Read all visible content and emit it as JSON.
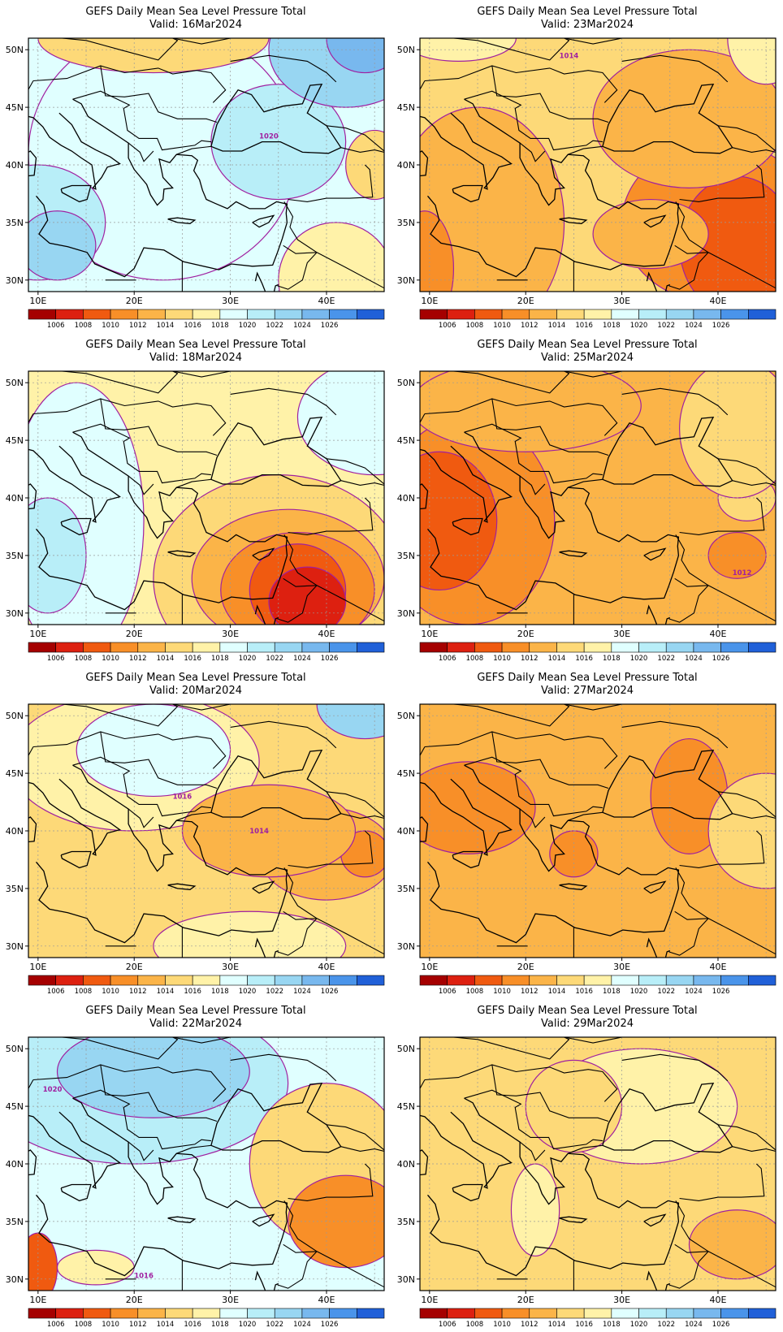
{
  "panels": [
    {
      "title": "GEFS Daily Mean Sea Level Pressure Total",
      "valid": "Valid: 16Mar2024",
      "base_level": 1018,
      "blobs": [
        {
          "lon": 23,
          "lat": 41,
          "rx": 14,
          "ry": 11,
          "level": 1019
        },
        {
          "lon": 35,
          "lat": 42,
          "rx": 7,
          "ry": 5,
          "level": 1020
        },
        {
          "lon": 42,
          "lat": 50,
          "rx": 8,
          "ry": 5,
          "level": 1022
        },
        {
          "lon": 44,
          "lat": 51,
          "rx": 4,
          "ry": 3,
          "level": 1025
        },
        {
          "lon": 10,
          "lat": 35,
          "rx": 7,
          "ry": 5,
          "level": 1021
        },
        {
          "lon": 12,
          "lat": 33,
          "rx": 4,
          "ry": 3,
          "level": 1022
        },
        {
          "lon": 41,
          "lat": 30,
          "rx": 6,
          "ry": 5,
          "level": 1017
        },
        {
          "lon": 45,
          "lat": 40,
          "rx": 3,
          "ry": 3,
          "level": 1014
        },
        {
          "lon": 22,
          "lat": 51,
          "rx": 12,
          "ry": 3,
          "level": 1015
        }
      ],
      "contour_labels": [
        {
          "lon": 34,
          "lat": 42.5,
          "text": "1020"
        }
      ]
    },
    {
      "title": "GEFS Daily Mean Sea Level Pressure Total",
      "valid": "Valid: 23Mar2024",
      "base_level": 1015,
      "blobs": [
        {
          "lon": 15,
          "lat": 35,
          "rx": 9,
          "ry": 10,
          "level": 1013
        },
        {
          "lon": 9.5,
          "lat": 31,
          "rx": 3,
          "ry": 5,
          "level": 1011
        },
        {
          "lon": 40,
          "lat": 35,
          "rx": 10,
          "ry": 7,
          "level": 1011
        },
        {
          "lon": 42,
          "lat": 33,
          "rx": 6,
          "ry": 6,
          "level": 1009
        },
        {
          "lon": 37,
          "lat": 44,
          "rx": 10,
          "ry": 6,
          "level": 1013
        },
        {
          "lon": 33,
          "lat": 34,
          "rx": 6,
          "ry": 3,
          "level": 1013
        },
        {
          "lon": 13,
          "lat": 51,
          "rx": 6,
          "ry": 2,
          "level": 1016
        },
        {
          "lon": 45,
          "lat": 51,
          "rx": 4,
          "ry": 4,
          "level": 1017
        }
      ],
      "contour_labels": [
        {
          "lon": 24.5,
          "lat": 49.5,
          "text": "1014"
        }
      ]
    },
    {
      "title": "GEFS Daily Mean Sea Level Pressure Total",
      "valid": "Valid: 18Mar2024",
      "base_level": 1017,
      "blobs": [
        {
          "lon": 14,
          "lat": 38,
          "rx": 7,
          "ry": 12,
          "level": 1019
        },
        {
          "lon": 11,
          "lat": 35,
          "rx": 4,
          "ry": 5,
          "level": 1021
        },
        {
          "lon": 45,
          "lat": 47,
          "rx": 8,
          "ry": 5,
          "level": 1019
        },
        {
          "lon": 35,
          "lat": 33,
          "rx": 13,
          "ry": 9,
          "level": 1015
        },
        {
          "lon": 36,
          "lat": 33,
          "rx": 10,
          "ry": 6,
          "level": 1012
        },
        {
          "lon": 37,
          "lat": 32,
          "rx": 8,
          "ry": 5,
          "level": 1010
        },
        {
          "lon": 37,
          "lat": 32,
          "rx": 5,
          "ry": 4,
          "level": 1008
        },
        {
          "lon": 38,
          "lat": 31,
          "rx": 4,
          "ry": 3,
          "level": 1006
        }
      ],
      "contour_labels": []
    },
    {
      "title": "GEFS Daily Mean Sea Level Pressure Total",
      "valid": "Valid: 25Mar2024",
      "base_level": 1013,
      "blobs": [
        {
          "lon": 14,
          "lat": 38,
          "rx": 9,
          "ry": 9,
          "level": 1010
        },
        {
          "lon": 11,
          "lat": 38,
          "rx": 6,
          "ry": 6,
          "level": 1008
        },
        {
          "lon": 20,
          "lat": 48,
          "rx": 12,
          "ry": 4,
          "level": 1012
        },
        {
          "lon": 43,
          "lat": 40,
          "rx": 3,
          "ry": 2,
          "level": 1015
        },
        {
          "lon": 42,
          "lat": 35,
          "rx": 3,
          "ry": 2,
          "level": 1011
        },
        {
          "lon": 42,
          "lat": 46,
          "rx": 6,
          "ry": 6,
          "level": 1014
        }
      ],
      "contour_labels": [
        {
          "lon": 42.5,
          "lat": 33.5,
          "text": "1012"
        }
      ]
    },
    {
      "title": "GEFS Daily Mean Sea Level Pressure Total",
      "valid": "Valid: 20Mar2024",
      "base_level": 1015,
      "blobs": [
        {
          "lon": 20,
          "lat": 46,
          "rx": 13,
          "ry": 6,
          "level": 1017
        },
        {
          "lon": 22,
          "lat": 47,
          "rx": 8,
          "ry": 4,
          "level": 1019
        },
        {
          "lon": 44,
          "lat": 51,
          "rx": 5,
          "ry": 3,
          "level": 1023
        },
        {
          "lon": 40,
          "lat": 38,
          "rx": 7,
          "ry": 4,
          "level": 1012
        },
        {
          "lon": 44,
          "lat": 38,
          "rx": 2.5,
          "ry": 2,
          "level": 1010
        },
        {
          "lon": 32,
          "lat": 30,
          "rx": 10,
          "ry": 3,
          "level": 1017
        },
        {
          "lon": 34,
          "lat": 40,
          "rx": 9,
          "ry": 4,
          "level": 1013
        }
      ],
      "contour_labels": [
        {
          "lon": 25,
          "lat": 43,
          "text": "1016"
        },
        {
          "lon": 33,
          "lat": 40,
          "text": "1014"
        }
      ]
    },
    {
      "title": "GEFS Daily Mean Sea Level Pressure Total",
      "valid": "Valid: 27Mar2024",
      "base_level": 1013,
      "blobs": [
        {
          "lon": 14,
          "lat": 42,
          "rx": 7,
          "ry": 4,
          "level": 1011
        },
        {
          "lon": 25,
          "lat": 38,
          "rx": 2.5,
          "ry": 2,
          "level": 1011
        },
        {
          "lon": 37,
          "lat": 43,
          "rx": 4,
          "ry": 5,
          "level": 1011
        },
        {
          "lon": 45,
          "lat": 40,
          "rx": 6,
          "ry": 5,
          "level": 1015
        }
      ],
      "contour_labels": []
    },
    {
      "title": "GEFS Daily Mean Sea Level Pressure Total",
      "valid": "Valid: 22Mar2024",
      "base_level": 1018,
      "blobs": [
        {
          "lon": 20,
          "lat": 47,
          "rx": 16,
          "ry": 7,
          "level": 1021
        },
        {
          "lon": 22,
          "lat": 48,
          "rx": 10,
          "ry": 4,
          "level": 1023
        },
        {
          "lon": 40,
          "lat": 40,
          "rx": 8,
          "ry": 7,
          "level": 1014
        },
        {
          "lon": 42,
          "lat": 35,
          "rx": 6,
          "ry": 4,
          "level": 1011
        },
        {
          "lon": 10,
          "lat": 31,
          "rx": 2,
          "ry": 3,
          "level": 1009
        },
        {
          "lon": 16,
          "lat": 31,
          "rx": 4,
          "ry": 1.5,
          "level": 1017
        }
      ],
      "contour_labels": [
        {
          "lon": 11.5,
          "lat": 46.5,
          "text": "1020"
        },
        {
          "lon": 21,
          "lat": 30.3,
          "text": "1016"
        }
      ]
    },
    {
      "title": "GEFS Daily Mean Sea Level Pressure Total",
      "valid": "Valid: 29Mar2024",
      "base_level": 1014,
      "blobs": [
        {
          "lon": 32,
          "lat": 45,
          "rx": 10,
          "ry": 5,
          "level": 1017
        },
        {
          "lon": 25,
          "lat": 45,
          "rx": 5,
          "ry": 4,
          "level": 1015
        },
        {
          "lon": 42,
          "lat": 33,
          "rx": 5,
          "ry": 3,
          "level": 1012
        },
        {
          "lon": 21,
          "lat": 36,
          "rx": 2.5,
          "ry": 4,
          "level": 1016
        }
      ],
      "contour_labels": []
    }
  ],
  "x_ticks": [
    {
      "lon": 10,
      "label": "10E"
    },
    {
      "lon": 20,
      "label": "20E"
    },
    {
      "lon": 30,
      "label": "30E"
    },
    {
      "lon": 40,
      "label": "40E"
    }
  ],
  "y_ticks": [
    {
      "lat": 50,
      "label": "50N"
    },
    {
      "lat": 45,
      "label": "45N"
    },
    {
      "lat": 40,
      "label": "40N"
    },
    {
      "lat": 35,
      "label": "35N"
    },
    {
      "lat": 30,
      "label": "30N"
    }
  ],
  "colorbar": {
    "labels": [
      "1006",
      "1008",
      "1010",
      "1012",
      "1014",
      "1016",
      "1018",
      "1020",
      "1022",
      "1024",
      "1026"
    ],
    "colors": [
      "#a50000",
      "#dd2010",
      "#f05a10",
      "#f88f28",
      "#fbb448",
      "#fdd978",
      "#fff2a8",
      "#e0ffff",
      "#b8eef8",
      "#98d6f2",
      "#78b8ee",
      "#4a94ea",
      "#2060d8"
    ]
  },
  "colors": {
    "contour": "#a020a0",
    "gridline": "#999999",
    "coast": "#000000"
  }
}
